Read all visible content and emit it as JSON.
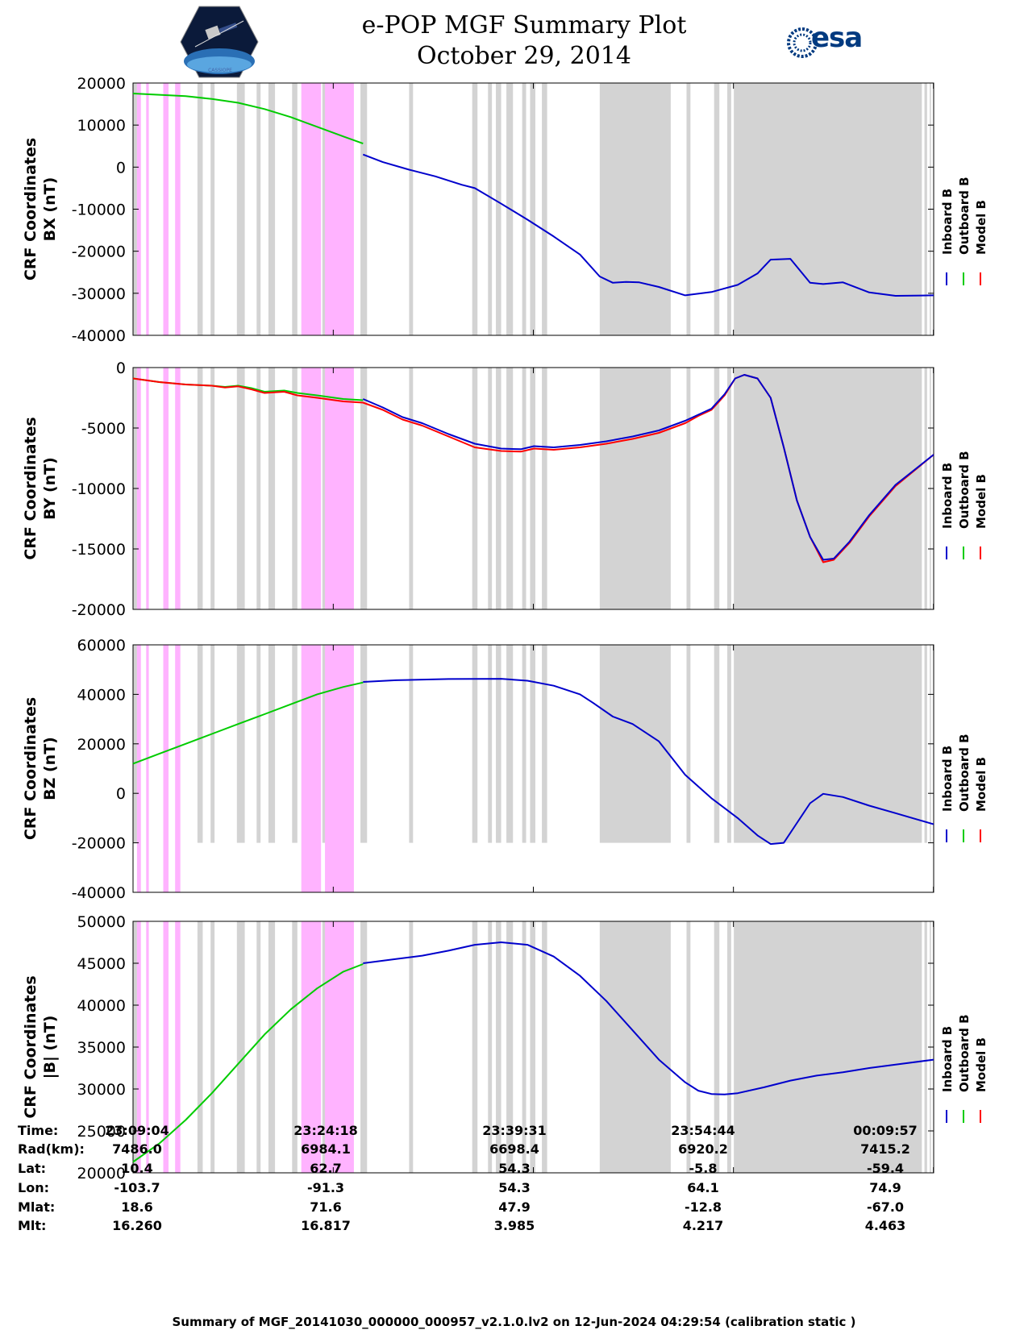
{
  "header": {
    "title_line1": "e-POP MGF Summary Plot",
    "title_line2": "October 29, 2014",
    "logo_left_text": "CASSIOPE",
    "logo_right_text": "esa"
  },
  "colors": {
    "inboard": "#0000cc",
    "outboard": "#00cc00",
    "model": "#ff0000",
    "gap_gray": "#d3d3d3",
    "gap_magenta": "#ffb3ff"
  },
  "legend": [
    "Inboard B",
    "Outboard B",
    "Model B"
  ],
  "time_axis": {
    "tick_labels": [
      "23:09:04",
      "23:24:18",
      "23:39:31",
      "23:54:44",
      "00:09:57"
    ],
    "start_min": 0,
    "end_min": 60.9,
    "tick_minutes": [
      0,
      15.23,
      30.45,
      45.67,
      60.88
    ]
  },
  "gaps": {
    "gray": [
      [
        0,
        0.3
      ],
      [
        4.9,
        5.3
      ],
      [
        5.9,
        6.2
      ],
      [
        7.9,
        8.5
      ],
      [
        9.4,
        9.7
      ],
      [
        10.3,
        10.8
      ],
      [
        12.1,
        12.5
      ],
      [
        14.4,
        14.8
      ],
      [
        17.3,
        17.8
      ],
      [
        21.0,
        21.3
      ],
      [
        25.8,
        26.2
      ],
      [
        27.0,
        27.3
      ],
      [
        27.6,
        28.0
      ],
      [
        28.4,
        28.9
      ],
      [
        29.6,
        29.9
      ],
      [
        30.2,
        30.6
      ],
      [
        31.1,
        31.5
      ],
      [
        35.5,
        40.9
      ],
      [
        42.1,
        42.4
      ],
      [
        44.2,
        44.6
      ],
      [
        45.2,
        45.5
      ],
      [
        45.7,
        60.0
      ],
      [
        60.2,
        60.4
      ],
      [
        60.6,
        60.7
      ]
    ],
    "magenta": [
      [
        0.3,
        0.6
      ],
      [
        1.0,
        1.2
      ],
      [
        2.3,
        2.7
      ],
      [
        3.2,
        3.6
      ],
      [
        12.8,
        14.3
      ],
      [
        14.6,
        16.8
      ]
    ]
  },
  "chart_data": [
    {
      "type": "line",
      "ylabel": "CRF Coordinates\nBX (nT)",
      "ylim": [
        -40000,
        20000
      ],
      "yticks": [
        -40000,
        -30000,
        -20000,
        -10000,
        0,
        10000,
        20000
      ],
      "gap_ylim": [
        -40000,
        20000
      ],
      "x": [
        0,
        2,
        4,
        6,
        8,
        10,
        12,
        14,
        16,
        17.5,
        19,
        21,
        23,
        25,
        26,
        28,
        30,
        32,
        34,
        35.5,
        36.5,
        37.5,
        38.5,
        40,
        42,
        44,
        46,
        47.5,
        48.5,
        50,
        51.5,
        52.5,
        54,
        56,
        58,
        60.9
      ],
      "series": [
        {
          "name": "Inboard B",
          "values": [
            null,
            null,
            null,
            null,
            null,
            null,
            null,
            null,
            null,
            3000,
            1200,
            -600,
            -2200,
            -4200,
            -5000,
            -8700,
            -12500,
            -16500,
            -20800,
            -26000,
            -27500,
            -27300,
            -27400,
            -28500,
            -30500,
            -29700,
            -28000,
            -25300,
            -22000,
            -21800,
            -27500,
            -27800,
            -27400,
            -29800,
            -30600,
            -30500
          ]
        },
        {
          "name": "Outboard B",
          "values": [
            17500,
            17200,
            16900,
            16200,
            15300,
            13800,
            11900,
            9600,
            7300,
            5600,
            null,
            null,
            null,
            null,
            null,
            null,
            null,
            null,
            null,
            null,
            null,
            null,
            null,
            null,
            null,
            null,
            null,
            null,
            null,
            null,
            null,
            null,
            null,
            null,
            null,
            null
          ]
        }
      ]
    },
    {
      "type": "line",
      "ylabel": "CRF Coordinates\nBY (nT)",
      "ylim": [
        -20000,
        0
      ],
      "yticks": [
        -20000,
        -15000,
        -10000,
        -5000,
        0
      ],
      "gap_ylim": [
        -20000,
        0
      ],
      "x": [
        0,
        2,
        4,
        6,
        7,
        8,
        9,
        10,
        11.5,
        12.5,
        14,
        16,
        17.5,
        19,
        20.5,
        22,
        24,
        26,
        28,
        29.5,
        30.5,
        32,
        34,
        36,
        38,
        40,
        42,
        43,
        44,
        45,
        45.8,
        46.5,
        47.5,
        48.5,
        49.5,
        50.5,
        51.5,
        52.5,
        53.3,
        54.5,
        56,
        58,
        60.9
      ],
      "series": [
        {
          "name": "Inboard B",
          "values": [
            null,
            null,
            null,
            null,
            null,
            null,
            null,
            null,
            null,
            null,
            null,
            null,
            -2600,
            -3300,
            -4100,
            -4600,
            -5500,
            -6300,
            -6700,
            -6750,
            -6500,
            -6600,
            -6400,
            -6100,
            -5700,
            -5200,
            -4400,
            -3900,
            -3400,
            -2200,
            -900,
            -600,
            -900,
            -2500,
            -6600,
            -11000,
            -14000,
            -15900,
            -15800,
            -14400,
            -12200,
            -9700,
            -7200
          ]
        },
        {
          "name": "Outboard B",
          "values": [
            -900,
            -1200,
            -1400,
            -1500,
            -1600,
            -1500,
            -1700,
            -2000,
            -1900,
            -2100,
            -2300,
            -2600,
            -2700,
            null,
            null,
            null,
            null,
            null,
            null,
            null,
            null,
            null,
            null,
            null,
            null,
            null,
            null,
            null,
            null,
            null,
            null,
            null,
            null,
            null,
            null,
            null,
            null,
            null,
            null,
            null,
            null,
            null,
            null
          ]
        },
        {
          "name": "Model B",
          "values": [
            -900,
            -1200,
            -1400,
            -1500,
            -1650,
            -1550,
            -1800,
            -2100,
            -2000,
            -2300,
            -2500,
            -2800,
            -2900,
            -3500,
            -4300,
            -4800,
            -5700,
            -6600,
            -6900,
            -6950,
            -6700,
            -6800,
            -6600,
            -6300,
            -5900,
            -5400,
            -4600,
            -4000,
            -3500,
            -2300,
            -900,
            -600,
            -900,
            -2500,
            -6600,
            -11000,
            -14000,
            -16100,
            -15900,
            -14500,
            -12300,
            -9800,
            -7200
          ]
        }
      ]
    },
    {
      "type": "line",
      "ylabel": "CRF Coordinates\nBZ (nT)",
      "ylim": [
        -40000,
        60000
      ],
      "yticks": [
        -40000,
        -20000,
        0,
        20000,
        40000,
        60000
      ],
      "gap_ylim": [
        -20000,
        60000
      ],
      "x": [
        0,
        2,
        4,
        6,
        8,
        10,
        12,
        14,
        16,
        17.5,
        20,
        24,
        28,
        30,
        32,
        34,
        35,
        36.5,
        38,
        40,
        42,
        44,
        46,
        47.5,
        48.5,
        49.5,
        50.5,
        51.5,
        52.5,
        54,
        56,
        58,
        60.9
      ],
      "series": [
        {
          "name": "Inboard B",
          "values": [
            null,
            null,
            null,
            null,
            null,
            null,
            null,
            null,
            null,
            45000,
            45700,
            46200,
            46300,
            45500,
            43500,
            40000,
            36500,
            31000,
            28000,
            21000,
            7500,
            -2000,
            -10000,
            -17000,
            -20500,
            -20000,
            -12000,
            -4000,
            -200,
            -1500,
            -5000,
            -8000,
            -12500
          ]
        },
        {
          "name": "Outboard B",
          "values": [
            12000,
            16000,
            20000,
            24000,
            28000,
            32000,
            36000,
            40000,
            43000,
            44800,
            null,
            null,
            null,
            null,
            null,
            null,
            null,
            null,
            null,
            null,
            null,
            null,
            null,
            null,
            null,
            null,
            null,
            null,
            null,
            null,
            null,
            null,
            null
          ]
        }
      ]
    },
    {
      "type": "line",
      "ylabel": "CRF Coordinates\n|B| (nT)",
      "ylim": [
        20000,
        50000
      ],
      "yticks": [
        20000,
        25000,
        30000,
        35000,
        40000,
        45000,
        50000
      ],
      "gap_ylim": [
        20000,
        50000
      ],
      "x": [
        0,
        2,
        4,
        6,
        8,
        10,
        12,
        14,
        16,
        17.5,
        20,
        22,
        24,
        26,
        28,
        30,
        32,
        34,
        36,
        38,
        40,
        42,
        43,
        44,
        45,
        46,
        48,
        50,
        52,
        54,
        56,
        58,
        60.9
      ],
      "series": [
        {
          "name": "Inboard B",
          "values": [
            null,
            null,
            null,
            null,
            null,
            null,
            null,
            null,
            null,
            45000,
            45500,
            45900,
            46500,
            47200,
            47500,
            47200,
            45800,
            43500,
            40500,
            37000,
            33500,
            30800,
            29800,
            29400,
            29350,
            29500,
            30200,
            31000,
            31600,
            32000,
            32500,
            32900,
            33500
          ]
        },
        {
          "name": "Outboard B",
          "values": [
            21300,
            23500,
            26300,
            29500,
            33000,
            36500,
            39500,
            42000,
            44000,
            44900,
            null,
            null,
            null,
            null,
            null,
            null,
            null,
            null,
            null,
            null,
            null,
            null,
            null,
            null,
            null,
            null,
            null,
            null,
            null,
            null,
            null,
            null,
            null
          ]
        }
      ]
    }
  ],
  "footer_table": {
    "labels": [
      "Time:",
      "Rad(km):",
      "Lat:",
      "Lon:",
      "Mlat:",
      "Mlt:"
    ],
    "columns": [
      [
        "23:09:04",
        "7486.0",
        "10.4",
        "-103.7",
        "18.6",
        "16.260"
      ],
      [
        "23:24:18",
        "6984.1",
        "62.7",
        "-91.3",
        "71.6",
        "16.817"
      ],
      [
        "23:39:31",
        "6698.4",
        "54.3",
        "54.3",
        "47.9",
        "3.985"
      ],
      [
        "23:54:44",
        "6920.2",
        "-5.8",
        "64.1",
        "-12.8",
        "4.217"
      ],
      [
        "00:09:57",
        "7415.2",
        "-59.4",
        "74.9",
        "-67.0",
        "4.463"
      ]
    ]
  },
  "footer_note": "Summary of MGF_20141030_000000_000957_v2.1.0.lv2 on 12-Jun-2024 04:29:54 (calibration static )"
}
